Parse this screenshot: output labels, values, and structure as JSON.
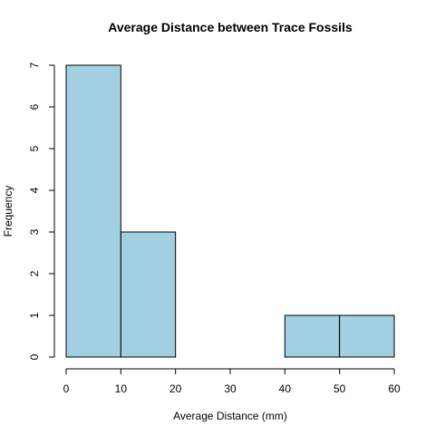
{
  "chart_data": {
    "type": "bar",
    "title": "Average Distance between Trace Fossils",
    "xlabel": "Average Distance (mm)",
    "ylabel": "Frequency",
    "bins": [
      [
        0,
        10
      ],
      [
        10,
        20
      ],
      [
        20,
        30
      ],
      [
        30,
        40
      ],
      [
        40,
        50
      ],
      [
        50,
        60
      ]
    ],
    "values": [
      7,
      3,
      0,
      0,
      1,
      1
    ],
    "xlim": [
      0,
      60
    ],
    "ylim": [
      0,
      7
    ],
    "x_ticks": [
      0,
      10,
      20,
      30,
      40,
      50,
      60
    ],
    "y_ticks": [
      0,
      1,
      2,
      3,
      4,
      5,
      6,
      7
    ],
    "bar_color": "#a2d0e2",
    "grid": false,
    "legend": "none"
  }
}
